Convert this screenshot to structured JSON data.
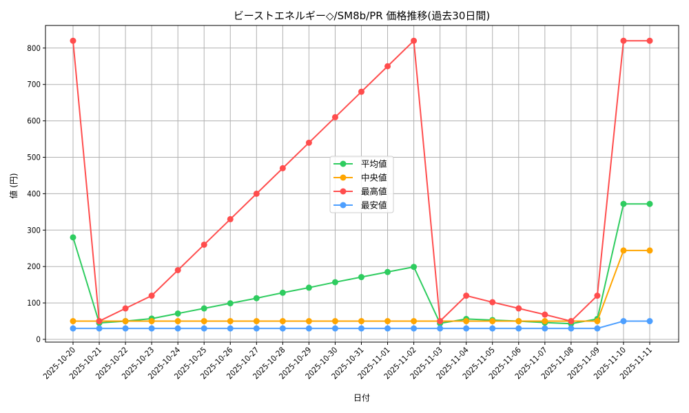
{
  "chart_data": {
    "type": "line",
    "title": "ビーストエネルギー◇/SM8b/PR 価格推移(過去30日間)",
    "xlabel": "日付",
    "ylabel": "値 (円)",
    "ylim": [
      -10,
      860
    ],
    "yticks": [
      0,
      100,
      200,
      300,
      400,
      500,
      600,
      700,
      800
    ],
    "grid": true,
    "legend_position": "center",
    "categories": [
      "2025-10-20",
      "2025-10-21",
      "2025-10-22",
      "2025-10-23",
      "2025-10-24",
      "2025-10-25",
      "2025-10-26",
      "2025-10-27",
      "2025-10-28",
      "2025-10-29",
      "2025-10-30",
      "2025-10-31",
      "2025-11-01",
      "2025-11-02",
      "2025-11-03",
      "2025-11-04",
      "2025-11-05",
      "2025-11-06",
      "2025-11-07",
      "2025-11-08",
      "2025-11-09",
      "2025-11-10",
      "2025-11-11"
    ],
    "series": [
      {
        "name": "平均値",
        "color": "#2ecc5f",
        "values": [
          280,
          45,
          50,
          57,
          71,
          85,
          99,
          113,
          128,
          142,
          157,
          171,
          185,
          199,
          44,
          56,
          53,
          50,
          46,
          43,
          56,
          372,
          372
        ]
      },
      {
        "name": "中央値",
        "color": "#ffa500",
        "values": [
          50,
          50,
          50,
          50,
          50,
          50,
          50,
          50,
          50,
          50,
          50,
          50,
          50,
          50,
          50,
          50,
          50,
          50,
          50,
          50,
          50,
          244,
          244
        ]
      },
      {
        "name": "最高値",
        "color": "#ff4d4d",
        "values": [
          820,
          50,
          85,
          120,
          190,
          260,
          330,
          400,
          470,
          540,
          610,
          680,
          750,
          820,
          50,
          120,
          102,
          85,
          68,
          50,
          120,
          820,
          820
        ]
      },
      {
        "name": "最安値",
        "color": "#4d9fff",
        "values": [
          30,
          30,
          30,
          30,
          30,
          30,
          30,
          30,
          30,
          30,
          30,
          30,
          30,
          30,
          30,
          30,
          30,
          30,
          30,
          30,
          30,
          50,
          50
        ]
      }
    ]
  }
}
